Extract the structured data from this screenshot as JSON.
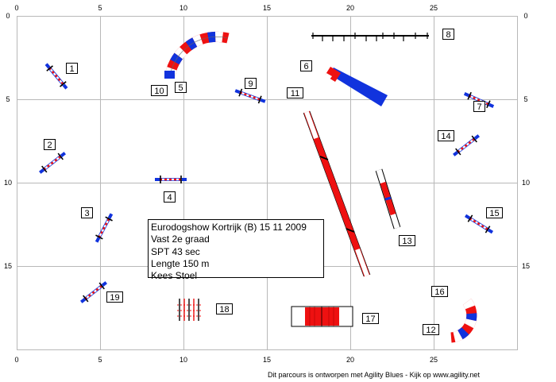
{
  "axes": {
    "x_ticks": [
      "0",
      "5",
      "10",
      "15",
      "20",
      "25"
    ],
    "y_ticks": [
      "0",
      "5",
      "10",
      "15"
    ]
  },
  "obstacles": [
    {
      "label": "1",
      "kind": "hurdle"
    },
    {
      "label": "2",
      "kind": "hurdle"
    },
    {
      "label": "3",
      "kind": "hurdle"
    },
    {
      "label": "4",
      "kind": "hurdle"
    },
    {
      "label": "5",
      "kind": "tunnel"
    },
    {
      "label": "6",
      "kind": "tire-tunnel"
    },
    {
      "label": "7",
      "kind": "hurdle"
    },
    {
      "label": "8",
      "kind": "long-jump"
    },
    {
      "label": "9",
      "kind": "hurdle"
    },
    {
      "label": "10",
      "kind": "tunnel"
    },
    {
      "label": "11",
      "kind": "dog-walk"
    },
    {
      "label": "12",
      "kind": "tunnel"
    },
    {
      "label": "13",
      "kind": "seesaw"
    },
    {
      "label": "14",
      "kind": "hurdle"
    },
    {
      "label": "15",
      "kind": "hurdle"
    },
    {
      "label": "16",
      "kind": "tunnel"
    },
    {
      "label": "17",
      "kind": "a-frame"
    },
    {
      "label": "18",
      "kind": "weave-poles"
    },
    {
      "label": "19",
      "kind": "hurdle"
    }
  ],
  "info": {
    "event": "Eurodogshow Kortrijk (B) 15 11 2009",
    "class": "Vast 2e graad",
    "spt": "SPT 43 sec",
    "length": "Lengte 150 m",
    "judge": "Kees Stoel"
  },
  "footer": "Dit parcours is ontworpen met Agility Blues - Kijk op www.agility.net",
  "colors": {
    "red": "#ee1111",
    "blue": "#1133dd",
    "grid": "#b8b8b8",
    "white": "#ffffff"
  }
}
